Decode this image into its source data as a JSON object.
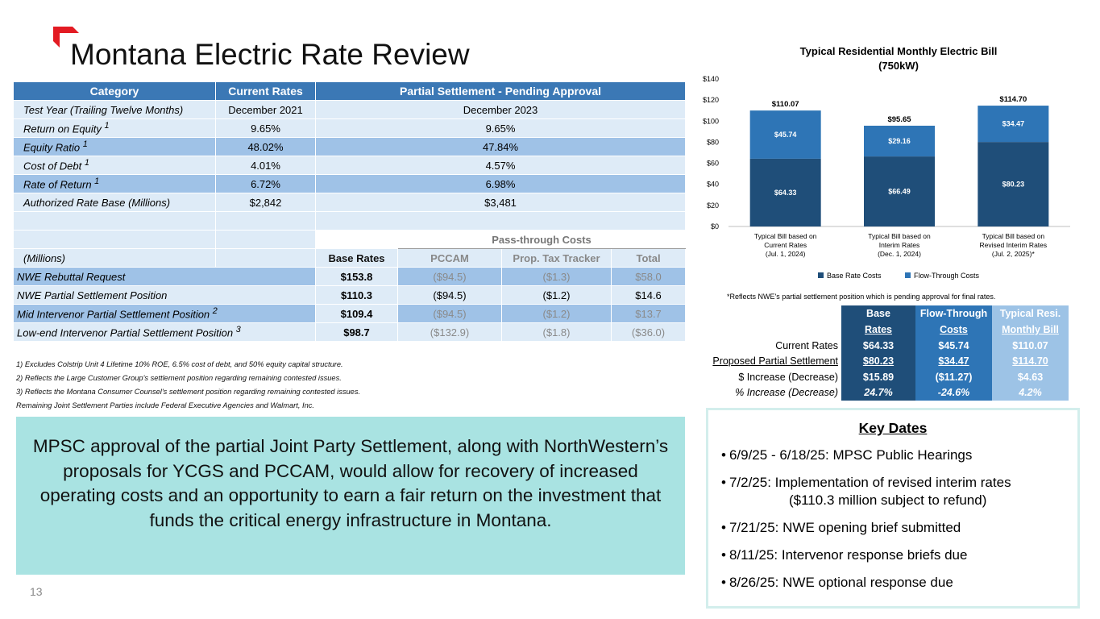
{
  "header": {
    "title": "Montana Electric Rate Review",
    "brand_color": "#e31b23"
  },
  "rate_table": {
    "headers": {
      "category": "Category",
      "current": "Current Rates",
      "partial": "Partial Settlement - Pending Approval"
    },
    "rows": [
      {
        "label": "Test Year (Trailing Twelve Months)",
        "sup": "",
        "current": "December 2021",
        "partial": "December 2023"
      },
      {
        "label": "Return on Equity",
        "sup": "1",
        "current": "9.65%",
        "partial": "9.65%"
      },
      {
        "label": "Equity Ratio",
        "sup": "1",
        "current": "48.02%",
        "partial": "47.84%"
      },
      {
        "label": "Cost of Debt",
        "sup": "1",
        "current": "4.01%",
        "partial": "4.57%"
      },
      {
        "label": "Rate of Return",
        "sup": "1",
        "current": "6.72%",
        "partial": "6.98%"
      },
      {
        "label": "Authorized Rate Base (Millions)",
        "sup": "",
        "current": "$2,842",
        "partial": "$3,481"
      }
    ],
    "pass_through_label": "Pass-through Costs",
    "millions_label": "(Millions)",
    "sub_headers": {
      "base": "Base Rates",
      "pccam": "PCCAM",
      "prop": "Prop. Tax Tracker",
      "total": "Total"
    },
    "positions": [
      {
        "label": "NWE Rebuttal Request",
        "sup": "",
        "base": "$153.8",
        "pccam": "($94.5)",
        "prop": "($1.3)",
        "total": "$58.0"
      },
      {
        "label": "NWE Partial Settlement Position",
        "sup": "",
        "base": "$110.3",
        "pccam": "($94.5)",
        "prop": "($1.2)",
        "total": "$14.6"
      },
      {
        "label": "Mid Intervenor Partial Settlement Position",
        "sup": "2",
        "base": "$109.4",
        "pccam": "($94.5)",
        "prop": "($1.2)",
        "total": "$13.7"
      },
      {
        "label": "Low-end Intervenor Partial Settlement Position",
        "sup": "3",
        "base": "$98.7",
        "pccam": "($132.9)",
        "prop": "($1.8)",
        "total": "($36.0)"
      }
    ]
  },
  "footnotes": [
    "1) Excludes Colstrip Unit 4 Lifetime 10% ROE, 6.5% cost of debt, and 50% equity capital structure.",
    "2) Reflects the Large Customer Group's settlement position regarding remaining contested issues.",
    "3) Reflects the Montana Consumer Counsel's settlement position regarding remaining contested issues.",
    "Remaining Joint Settlement Parties include Federal Executive Agencies and Walmart, Inc."
  ],
  "callout": {
    "text": "MPSC approval of the partial Joint Party Settlement, along with NorthWestern’s proposals for YCGS and PCCAM, would allow for recovery of increased operating costs and an opportunity to earn a fair return on the investment that funds the critical energy infrastructure in Montana."
  },
  "page_number": "13",
  "chart_data": {
    "type": "bar",
    "stacked": true,
    "title": "Typical Residential Monthly Electric Bill",
    "subtitle": "(750kW)",
    "categories": [
      [
        "Typical Bill based on",
        "Current Rates",
        "(Jul. 1, 2024)"
      ],
      [
        "Typical Bill based on",
        "Interim Rates",
        "(Dec. 1, 2024)"
      ],
      [
        "Typical Bill based on",
        "Revised Interim Rates",
        "(Jul. 2, 2025)*"
      ]
    ],
    "series": [
      {
        "name": "Base Rate Costs",
        "color": "#1f4e79",
        "values": [
          64.33,
          66.49,
          80.23
        ],
        "labels": [
          "$64.33",
          "$66.49",
          "$80.23"
        ]
      },
      {
        "name": "Flow-Through Costs",
        "color": "#2e75b6",
        "values": [
          45.74,
          29.16,
          34.47
        ],
        "labels": [
          "$45.74",
          "$29.16",
          "$34.47"
        ]
      }
    ],
    "totals": [
      "$110.07",
      "$95.65",
      "$114.70"
    ],
    "yticks": [
      "$0",
      "$20",
      "$40",
      "$60",
      "$80",
      "$100",
      "$120",
      "$140"
    ],
    "ylim": [
      0,
      140
    ],
    "legend_position": "bottom",
    "note": "*Reflects NWE's partial settlement position which is pending approval for final rates."
  },
  "bill_table": {
    "headers": [
      [
        "Base",
        "Rates"
      ],
      [
        "Flow-Through",
        "Costs"
      ],
      [
        "Typical Resi.",
        "Monthly Bill"
      ]
    ],
    "rows": [
      {
        "label": "Current Rates",
        "values": [
          "$64.33",
          "$45.74",
          "$110.07"
        ],
        "style": ""
      },
      {
        "label": "Proposed Partial Settlement",
        "values": [
          "$80.23",
          "$34.47",
          "$114.70"
        ],
        "style": "underline"
      },
      {
        "label": "$ Increase (Decrease)",
        "values": [
          "$15.89",
          "($11.27)",
          "$4.63"
        ],
        "style": ""
      },
      {
        "label": "% Increase (Decrease)",
        "values": [
          "24.7%",
          "-24.6%",
          "4.2%"
        ],
        "style": "italic"
      }
    ]
  },
  "key_dates": {
    "title": "Key Dates",
    "items": [
      {
        "text": "6/9/25 - 6/18/25:  MPSC Public Hearings",
        "cont": ""
      },
      {
        "text": "7/2/25:  Implementation of revised interim rates",
        "cont": "($110.3 million subject to refund)"
      },
      {
        "text": "7/21/25:  NWE opening brief submitted",
        "cont": ""
      },
      {
        "text": "8/11/25:  Intervenor response briefs due",
        "cont": ""
      },
      {
        "text": "8/26/25:  NWE optional response due",
        "cont": ""
      }
    ]
  }
}
